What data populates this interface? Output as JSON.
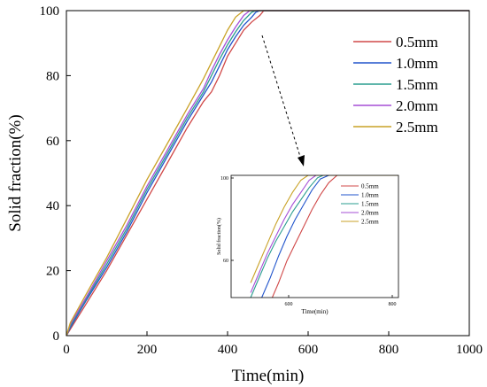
{
  "chart_data": [
    {
      "type": "line",
      "xlabel": "Time(min)",
      "ylabel": "Solid fraction(%)",
      "xlim": [
        0,
        1000
      ],
      "ylim": [
        0,
        100
      ],
      "xticks": [
        0,
        200,
        400,
        600,
        800,
        1000
      ],
      "yticks": [
        0,
        20,
        40,
        60,
        80,
        100
      ],
      "grid": false,
      "legend_position": "top-right",
      "series": [
        {
          "name": "0.5mm",
          "color": "#d04848",
          "x": [
            0,
            10,
            50,
            100,
            150,
            200,
            250,
            300,
            340,
            360,
            380,
            400,
            420,
            440,
            460,
            480,
            490,
            500,
            1000
          ],
          "y": [
            0,
            2,
            10,
            20,
            31,
            42,
            53,
            64,
            72,
            75,
            80,
            86,
            90,
            94,
            96.5,
            98.5,
            100,
            100,
            100
          ]
        },
        {
          "name": "1.0mm",
          "color": "#2255cc",
          "x": [
            0,
            10,
            50,
            100,
            150,
            200,
            250,
            300,
            340,
            360,
            380,
            400,
            420,
            440,
            460,
            470,
            480,
            1000
          ],
          "y": [
            0,
            2.5,
            11,
            21,
            32,
            44,
            55,
            66,
            74,
            78,
            83,
            88,
            92,
            95.5,
            98,
            99.5,
            100,
            100
          ]
        },
        {
          "name": "1.5mm",
          "color": "#2a9d8f",
          "x": [
            0,
            10,
            50,
            100,
            150,
            200,
            250,
            300,
            340,
            360,
            380,
            400,
            420,
            440,
            460,
            470,
            1000
          ],
          "y": [
            0,
            3,
            11.5,
            22,
            33,
            45,
            56,
            67,
            75,
            80,
            85,
            89.5,
            93.5,
            97,
            99.5,
            100,
            100
          ]
        },
        {
          "name": "2.0mm",
          "color": "#a64fd6",
          "x": [
            0,
            10,
            50,
            100,
            150,
            200,
            250,
            300,
            340,
            360,
            380,
            400,
            420,
            440,
            455,
            1000
          ],
          "y": [
            0,
            3.5,
            12,
            23,
            34,
            46,
            57,
            68,
            76,
            81.5,
            86.5,
            91,
            95,
            98.5,
            100,
            100
          ]
        },
        {
          "name": "2.5mm",
          "color": "#c9a227",
          "x": [
            0,
            10,
            50,
            100,
            150,
            200,
            250,
            300,
            340,
            360,
            380,
            400,
            420,
            440,
            1000
          ],
          "y": [
            0,
            4,
            13,
            24,
            36,
            48,
            59,
            70,
            79,
            84,
            89,
            94,
            98,
            100,
            100
          ]
        }
      ]
    },
    {
      "type": "line",
      "xlabel": "Time(min)",
      "ylabel": "Solid fraction(%)",
      "xlim": [
        300,
        600
      ],
      "ylim": [
        50,
        100
      ],
      "xtick_labels": [
        "600",
        "800"
      ],
      "ytick_labels": [
        "60",
        "100"
      ],
      "legend_position": "right",
      "series": [
        {
          "name": "0.5mm",
          "color": "#d04848",
          "x": [
            370,
            385,
            400,
            415,
            430,
            445,
            460,
            475,
            490,
            600
          ],
          "y": [
            48,
            56,
            65,
            72,
            79,
            86,
            92,
            97,
            100,
            100
          ]
        },
        {
          "name": "1.0mm",
          "color": "#2255cc",
          "x": [
            355,
            370,
            385,
            400,
            415,
            430,
            445,
            460,
            475,
            600
          ],
          "y": [
            50,
            58,
            67,
            75,
            82,
            88,
            94,
            98.5,
            100,
            100
          ]
        },
        {
          "name": "1.5mm",
          "color": "#2a9d8f",
          "x": [
            335,
            350,
            365,
            380,
            395,
            410,
            425,
            440,
            455,
            465,
            600
          ],
          "y": [
            50,
            58,
            66,
            73,
            79,
            85,
            90,
            95,
            99,
            100,
            100
          ]
        },
        {
          "name": "2.0mm",
          "color": "#a64fd6",
          "x": [
            335,
            350,
            365,
            380,
            395,
            410,
            425,
            440,
            452,
            600
          ],
          "y": [
            52,
            60,
            68,
            75,
            82,
            88,
            93,
            98,
            100,
            100
          ]
        },
        {
          "name": "2.5mm",
          "color": "#c9a227",
          "x": [
            335,
            350,
            365,
            380,
            395,
            410,
            425,
            438,
            600
          ],
          "y": [
            56,
            64,
            72,
            80,
            87,
            93,
            98,
            100,
            100
          ]
        }
      ]
    }
  ]
}
